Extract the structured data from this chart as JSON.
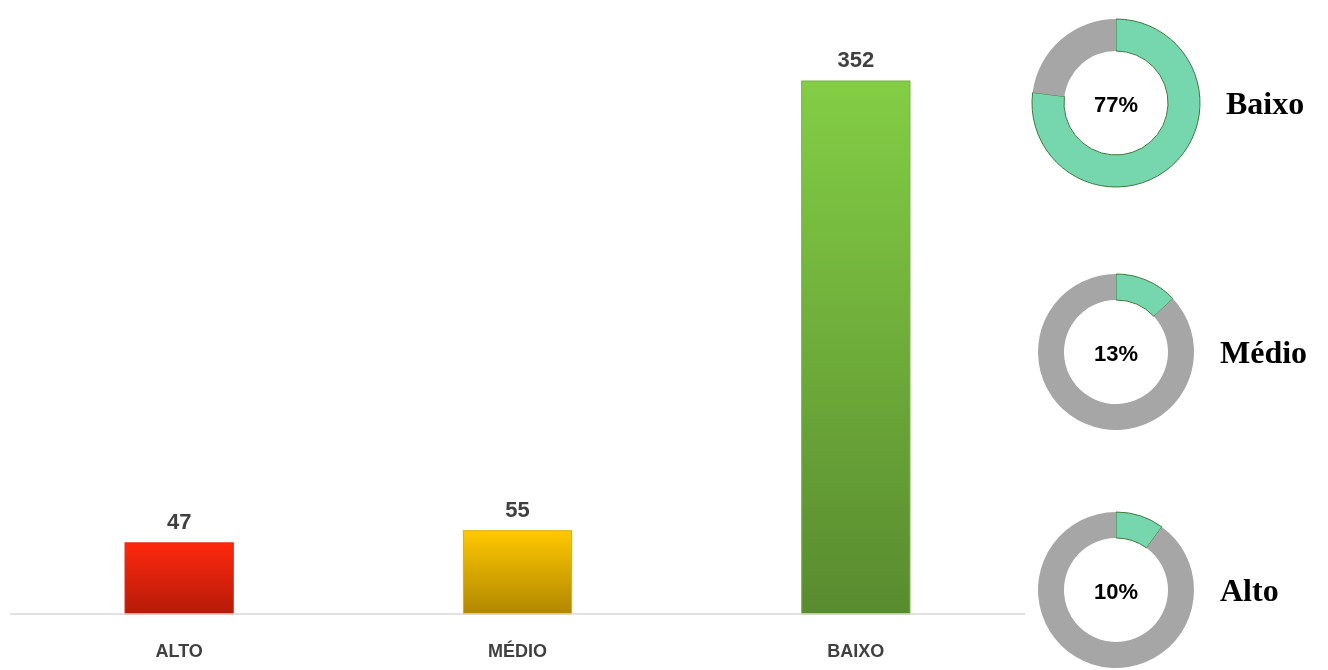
{
  "chart_data": [
    {
      "type": "bar",
      "categories": [
        "ALTO",
        "MÉDIO",
        "BAIXO"
      ],
      "values": [
        47,
        55,
        352
      ],
      "colors": [
        "#e8230c",
        "#e2ad00",
        "#72b33c"
      ],
      "data_labels": true
    },
    {
      "type": "donut",
      "title": "Baixo",
      "categories": [
        null,
        null
      ],
      "values": [
        77,
        23
      ],
      "colors": [
        "#76d6ae",
        "#a6a6a6"
      ],
      "annotations": [
        "77%"
      ]
    },
    {
      "type": "donut",
      "title": "Médio",
      "categories": [
        null,
        null
      ],
      "values": [
        13,
        87
      ],
      "colors": [
        "#76d6ae",
        "#a6a6a6"
      ],
      "annotations": [
        "13%"
      ]
    },
    {
      "type": "donut",
      "title": "Alto",
      "categories": [
        null,
        null
      ],
      "values": [
        10,
        90
      ],
      "colors": [
        "#76d6ae",
        "#a6a6a6"
      ],
      "annotations": [
        "10%"
      ]
    }
  ]
}
